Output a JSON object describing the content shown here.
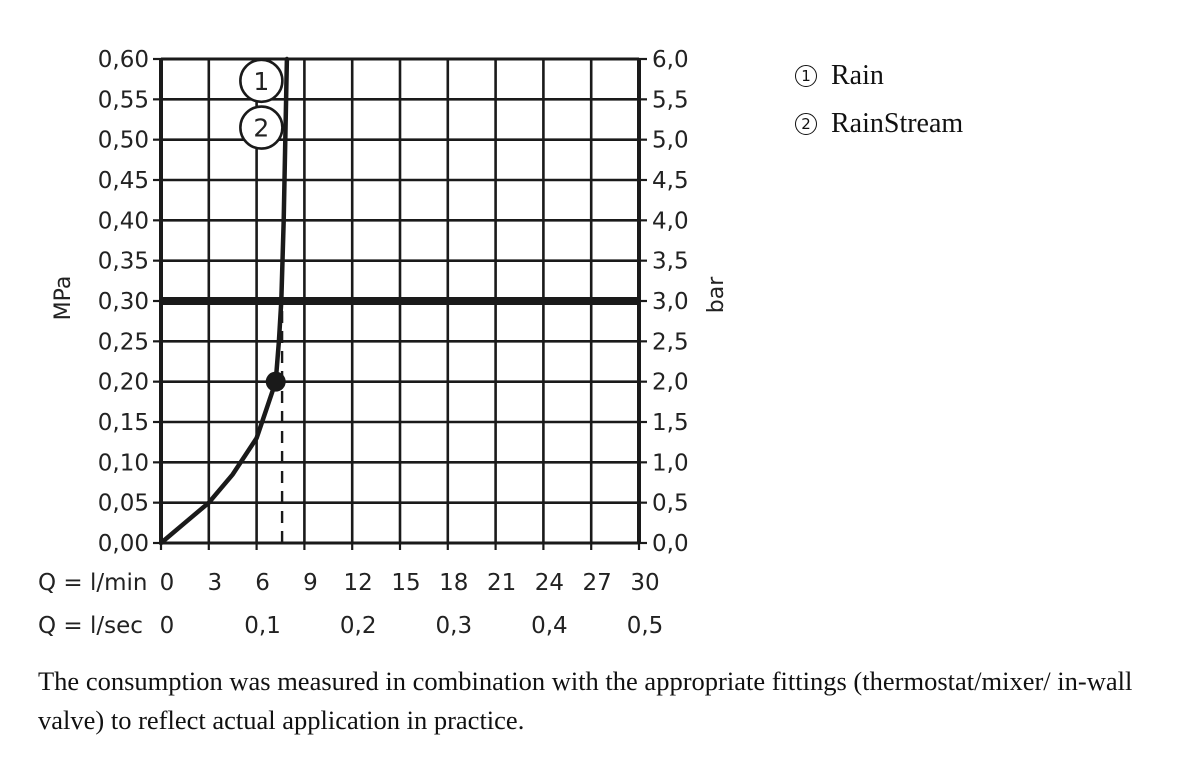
{
  "chart_data": {
    "type": "line",
    "title": "",
    "ylabel_left": "MPa",
    "ylabel_right": "bar",
    "xlabel_rows": [
      {
        "label": "Q = l/min",
        "ticks": [
          "0",
          "3",
          "6",
          "9",
          "12",
          "15",
          "18",
          "21",
          "24",
          "27",
          "30"
        ]
      },
      {
        "label": "Q = l/sec",
        "ticks": [
          "0",
          "0,1",
          "0,2",
          "0,3",
          "0,4",
          "0,5"
        ]
      }
    ],
    "y_ticks_left": [
      "0,00",
      "0,05",
      "0,10",
      "0,15",
      "0,20",
      "0,25",
      "0,30",
      "0,35",
      "0,40",
      "0,45",
      "0,50",
      "0,55",
      "0,60"
    ],
    "y_ticks_right": [
      "0,0",
      "0,5",
      "1,0",
      "1,5",
      "2,0",
      "2,5",
      "3,0",
      "3,5",
      "4,0",
      "4,5",
      "5,0",
      "5,5",
      "6,0"
    ],
    "xlim": [
      0,
      30
    ],
    "ylim": [
      0,
      0.6
    ],
    "grid": true,
    "legend_position": "right",
    "series": [
      {
        "name": "Rain / RainStream (curves 1 and 2)",
        "x_lpm": [
          0,
          1.5,
          3,
          4.5,
          6,
          6.6,
          7.2,
          7.4,
          7.55,
          7.7,
          7.85,
          7.9
        ],
        "y_mpa": [
          0,
          0.025,
          0.05,
          0.085,
          0.13,
          0.165,
          0.2,
          0.25,
          0.3,
          0.4,
          0.55,
          0.6
        ]
      }
    ],
    "annotations": [
      {
        "type": "reference-line",
        "orientation": "horizontal",
        "y_mpa": 0.3,
        "style": "thick"
      },
      {
        "type": "marker",
        "x_lpm": 7.2,
        "y_mpa": 0.2,
        "style": "filled-dot"
      },
      {
        "type": "reference-line",
        "orientation": "vertical",
        "x_lpm": 7.6,
        "y_from": 0,
        "y_to": 0.3,
        "style": "dashed"
      },
      {
        "type": "curve-label",
        "text": "1",
        "x_lpm": 6.3,
        "y_mpa": 0.573
      },
      {
        "type": "curve-label",
        "text": "2",
        "x_lpm": 6.3,
        "y_mpa": 0.515
      }
    ]
  },
  "legend": {
    "items": [
      {
        "num": "1",
        "label": "Rain"
      },
      {
        "num": "2",
        "label": "RainStream"
      }
    ]
  },
  "footnote": "The consumption was measured in combination with the appropriate fittings (thermostat/mixer/ in-wall valve) to reflect actual application in practice."
}
